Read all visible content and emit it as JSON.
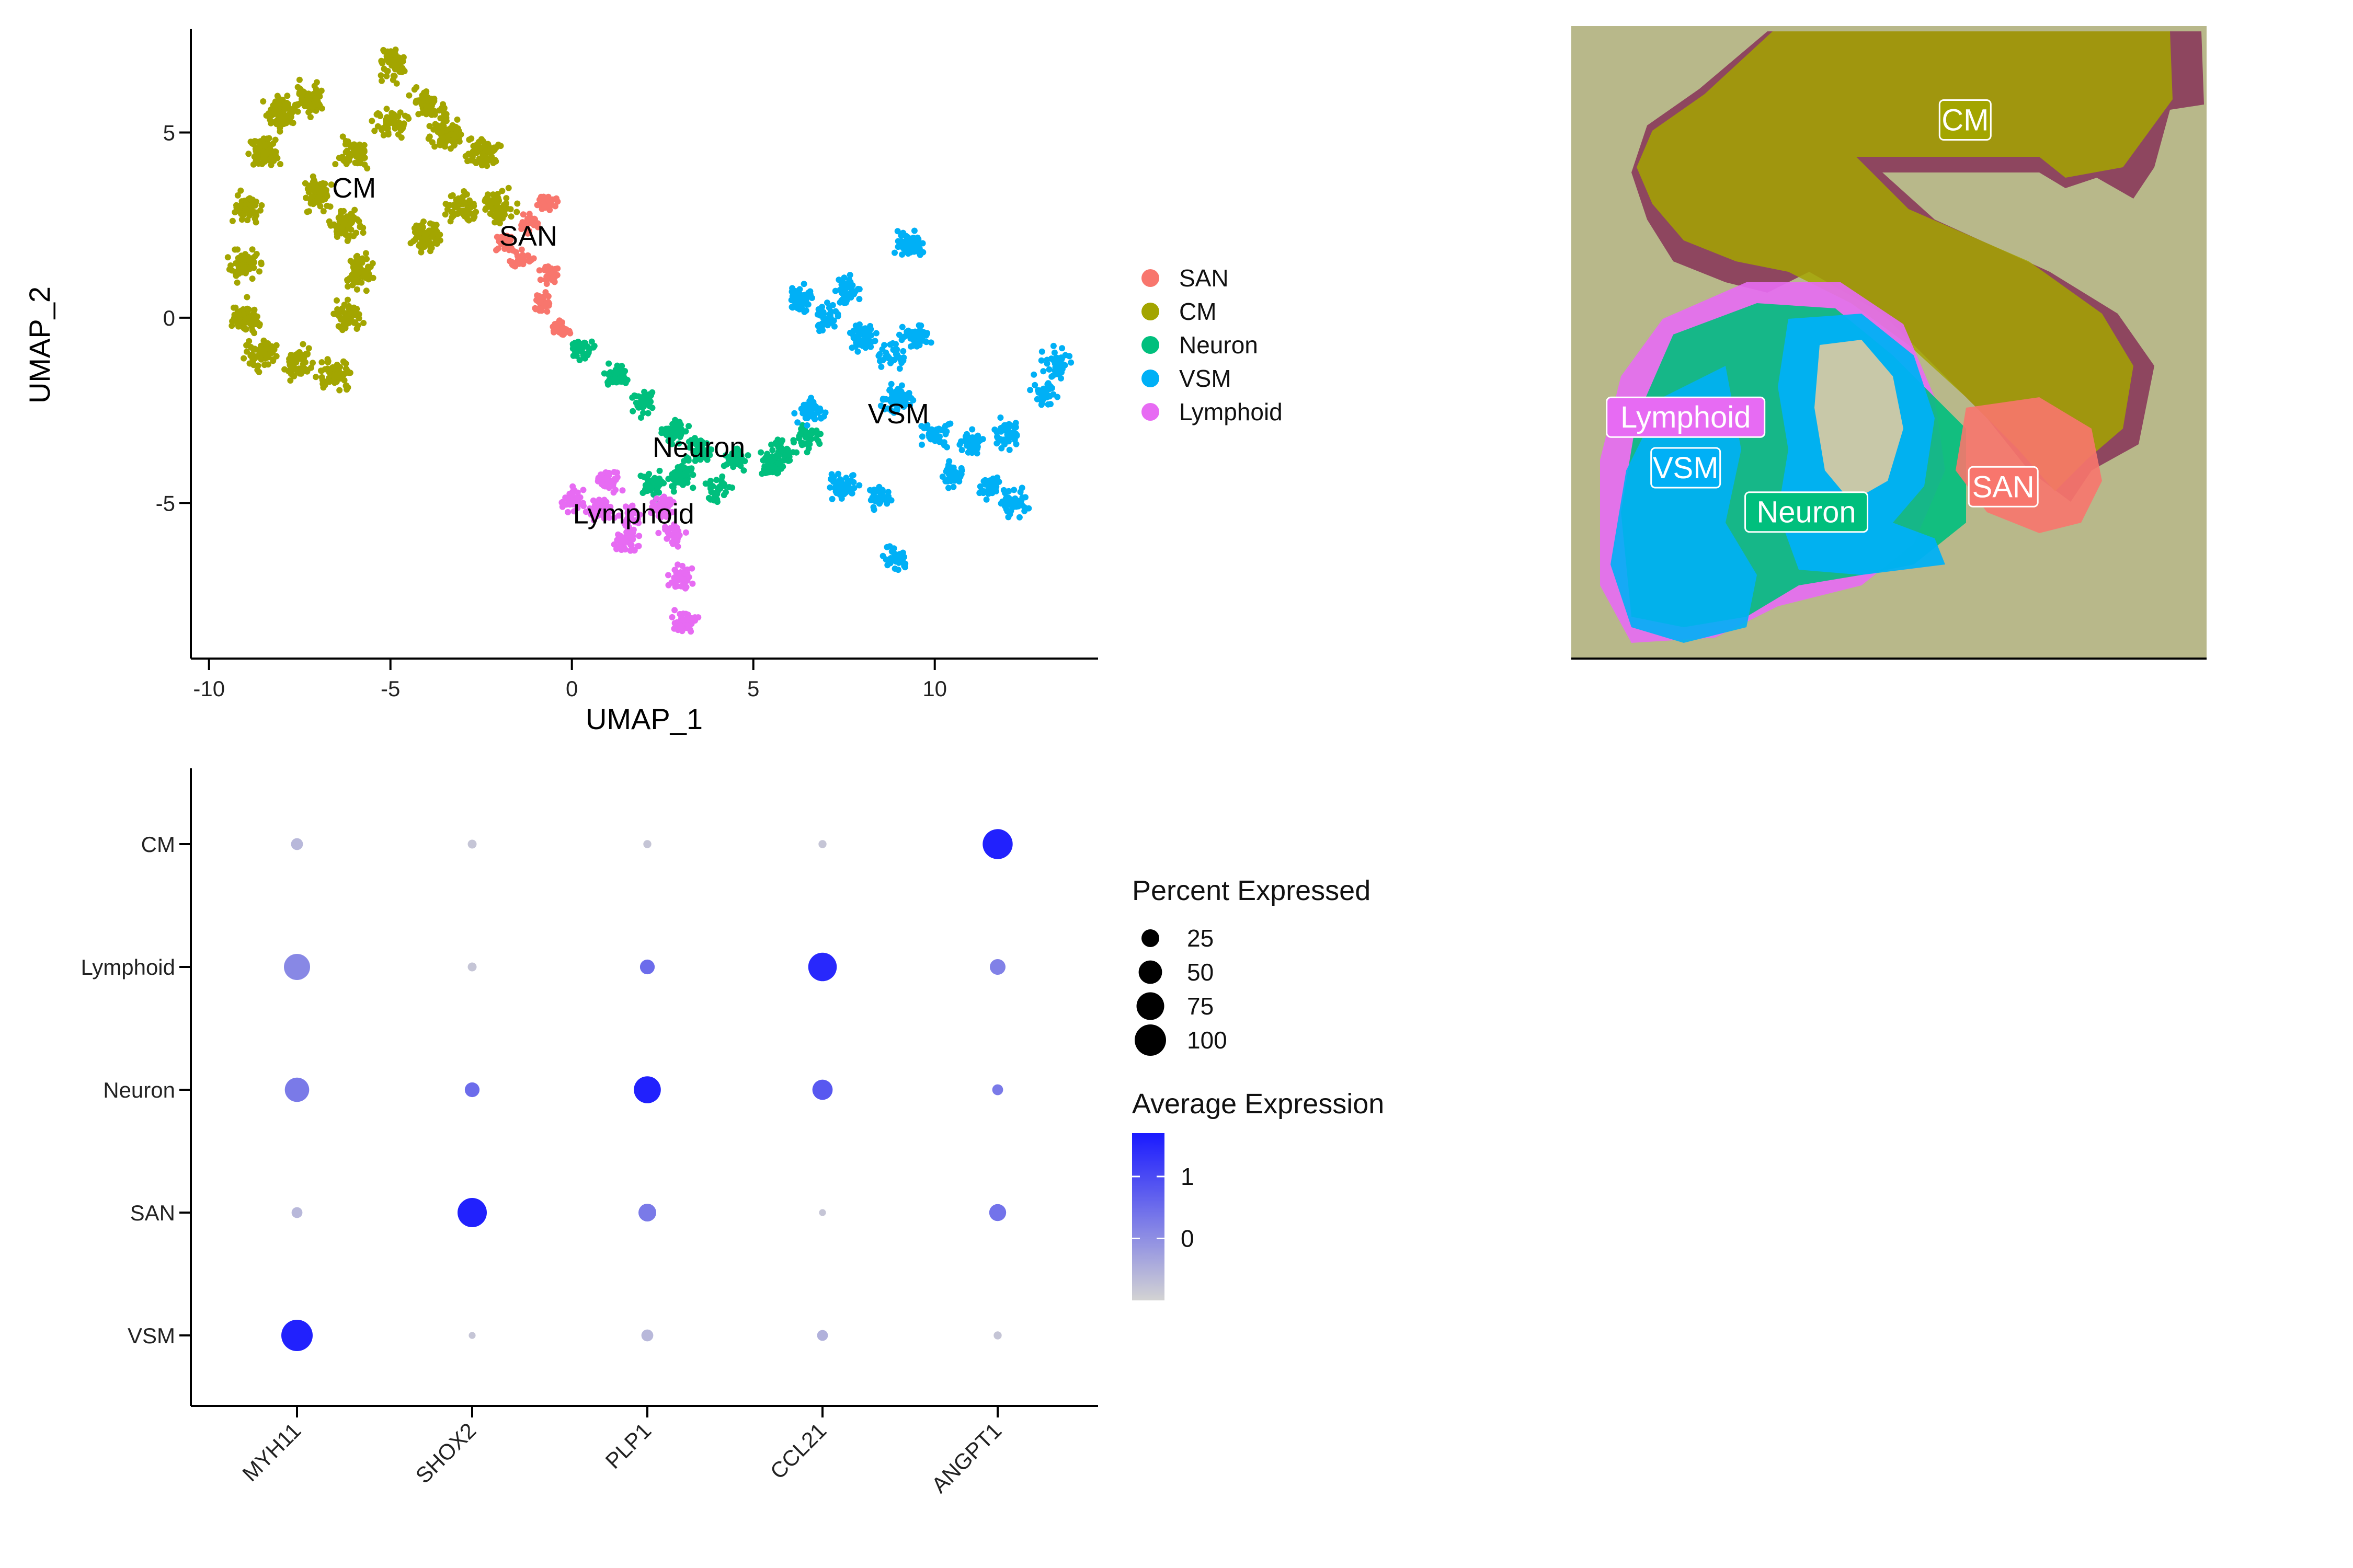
{
  "colors": {
    "SAN": "#F8766D",
    "CM": "#A3A500",
    "Neuron": "#00BF7D",
    "VSM": "#00B0F6",
    "Lymphoid": "#E76BF3",
    "expr_low": "#d3d3d3",
    "expr_high": "#1a1aff",
    "tissue_bg": "#b8b88a",
    "tissue_stain": "#8a3a5a"
  },
  "chart_data": [
    {
      "type": "scatter",
      "xlabel": "UMAP_1",
      "ylabel": "UMAP_2",
      "xlim": [
        -10.5,
        14.5
      ],
      "ylim": [
        -9.2,
        7.8
      ],
      "x_ticks": [
        -10,
        -5,
        0,
        5,
        10
      ],
      "y_ticks": [
        5,
        0,
        -5
      ],
      "x_tick_labels": [
        "-10",
        "-5",
        "0",
        "5",
        "10"
      ],
      "y_tick_labels": [
        "5",
        "0",
        "-5"
      ],
      "legend_position": "right",
      "series": [
        {
          "name": "SAN",
          "center": [
            -1.2,
            1.6
          ],
          "label_pos": [
            -1.2,
            2.2
          ]
        },
        {
          "name": "CM",
          "center": [
            -6.0,
            3.0
          ],
          "label_pos": [
            -6.0,
            3.5
          ]
        },
        {
          "name": "Neuron",
          "center": [
            3.5,
            -3.8
          ],
          "label_pos": [
            3.5,
            -3.5
          ]
        },
        {
          "name": "VSM",
          "center": [
            9.0,
            -2.5
          ],
          "label_pos": [
            9.0,
            -2.6
          ]
        },
        {
          "name": "Lymphoid",
          "center": [
            1.5,
            -5.3
          ],
          "label_pos": [
            1.7,
            -5.3
          ]
        }
      ]
    },
    {
      "type": "image",
      "overlay_labels": [
        {
          "name": "CM",
          "pos": [
            0.62,
            0.15
          ]
        },
        {
          "name": "Lymphoid",
          "pos": [
            0.18,
            0.62
          ]
        },
        {
          "name": "VSM",
          "pos": [
            0.18,
            0.7
          ]
        },
        {
          "name": "Neuron",
          "pos": [
            0.37,
            0.77
          ]
        },
        {
          "name": "SAN",
          "pos": [
            0.68,
            0.73
          ]
        }
      ]
    },
    {
      "type": "dot",
      "genes": [
        "MYH11",
        "SHOX2",
        "PLP1",
        "CCL21",
        "ANGPT1"
      ],
      "clusters": [
        "CM",
        "Lymphoid",
        "Neuron",
        "SAN",
        "VSM"
      ],
      "percent_expressed": [
        [
          8,
          3,
          2,
          2,
          90
        ],
        [
          65,
          3,
          15,
          80,
          18
        ],
        [
          55,
          15,
          70,
          35,
          6
        ],
        [
          6,
          85,
          25,
          1,
          22
        ],
        [
          100,
          1,
          8,
          6,
          2
        ]
      ],
      "average_expression": [
        [
          -0.6,
          -0.8,
          -0.8,
          -0.8,
          1.6
        ],
        [
          0.1,
          -0.8,
          0.5,
          1.5,
          0.2
        ],
        [
          0.3,
          0.5,
          1.6,
          0.8,
          0.3
        ],
        [
          -0.6,
          1.6,
          0.3,
          -0.8,
          0.4
        ],
        [
          1.6,
          -0.8,
          -0.6,
          -0.5,
          -0.8
        ]
      ],
      "size_legend_title": "Percent Expressed",
      "size_legend": [
        25,
        50,
        75,
        100
      ],
      "size_legend_labels": [
        "25",
        "50",
        "75",
        "100"
      ],
      "color_legend_title": "Average Expression",
      "color_legend_ticks": [
        "1",
        "0"
      ],
      "color_range": [
        -1.0,
        1.7
      ]
    }
  ],
  "legend": {
    "items": [
      "SAN",
      "CM",
      "Neuron",
      "VSM",
      "Lymphoid"
    ]
  }
}
